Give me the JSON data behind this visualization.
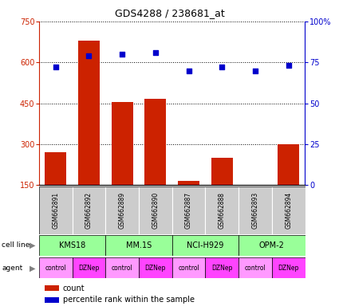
{
  "title": "GDS4288 / 238681_at",
  "samples": [
    "GSM662891",
    "GSM662892",
    "GSM662889",
    "GSM662890",
    "GSM662887",
    "GSM662888",
    "GSM662893",
    "GSM662894"
  ],
  "counts": [
    270,
    680,
    455,
    465,
    165,
    250,
    148,
    300
  ],
  "percentile_ranks": [
    72,
    79,
    80,
    81,
    70,
    72,
    70,
    73
  ],
  "cell_lines": [
    {
      "label": "KMS18",
      "span": [
        0,
        2
      ]
    },
    {
      "label": "MM.1S",
      "span": [
        2,
        4
      ]
    },
    {
      "label": "NCI-H929",
      "span": [
        4,
        6
      ]
    },
    {
      "label": "OPM-2",
      "span": [
        6,
        8
      ]
    }
  ],
  "agents": [
    "control",
    "DZNep",
    "control",
    "DZNep",
    "control",
    "DZNep",
    "control",
    "DZNep"
  ],
  "bar_color": "#cc2200",
  "dot_color": "#0000cc",
  "cell_line_color": "#99ff99",
  "agent_control_color": "#ff99ff",
  "agent_dznep_color": "#ff44ff",
  "sample_bg_color": "#cccccc",
  "ylim_left": [
    150,
    750
  ],
  "ylim_right": [
    0,
    100
  ],
  "yticks_left": [
    150,
    300,
    450,
    600,
    750
  ],
  "yticks_right": [
    0,
    25,
    50,
    75,
    100
  ],
  "left_axis_color": "#cc2200",
  "right_axis_color": "#0000cc",
  "legend_count_color": "#cc2200",
  "legend_pct_color": "#0000cc",
  "bar_width": 0.65
}
